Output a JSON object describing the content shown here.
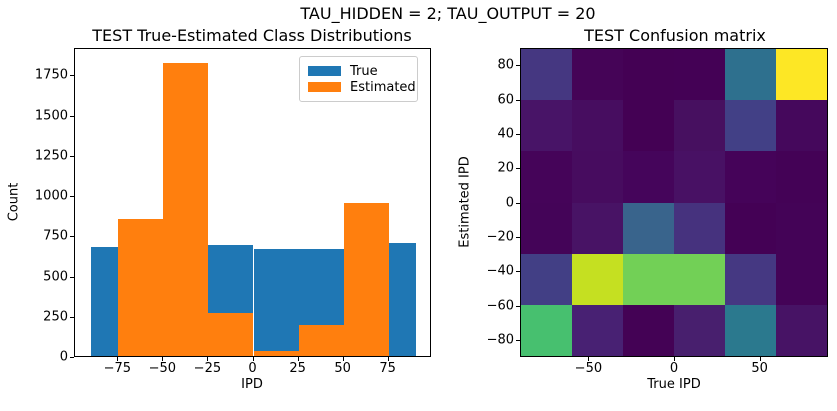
{
  "figure": {
    "suptitle": "TAU_HIDDEN = 2; TAU_OUTPUT = 20",
    "background": "#ffffff"
  },
  "chart_data": [
    {
      "type": "bar",
      "subtype": "overlaid-histogram",
      "title": "TEST True-Estimated Class Distributions",
      "xlabel": "IPD",
      "ylabel": "Count",
      "xlim": [
        -99,
        99
      ],
      "ylim": [
        0,
        1920
      ],
      "xticks": [
        -75,
        -50,
        -25,
        0,
        25,
        50,
        75
      ],
      "yticks": [
        0,
        250,
        500,
        750,
        1000,
        1250,
        1500,
        1750
      ],
      "bin_edges": [
        -90,
        -75,
        -50,
        -25,
        0,
        25,
        50,
        75,
        90
      ],
      "series": [
        {
          "name": "True",
          "color": "#1f77b4",
          "values": [
            680,
            660,
            660,
            690,
            665,
            665,
            665,
            700
          ]
        },
        {
          "name": "Estimated",
          "color": "#ff7f0e",
          "values": [
            0,
            850,
            1820,
            270,
            30,
            190,
            950,
            0
          ]
        }
      ],
      "legend": {
        "position": "upper right",
        "entries": [
          "True",
          "Estimated"
        ]
      },
      "grid": false
    },
    {
      "type": "heatmap",
      "title": "TEST Confusion matrix",
      "xlabel": "True IPD",
      "ylabel": "Estimated IPD",
      "colormap": "viridis",
      "extent": [
        -90,
        90,
        -90,
        90
      ],
      "xticks": [
        -50,
        0,
        50
      ],
      "yticks": [
        80,
        60,
        40,
        20,
        0,
        -20,
        -40,
        -60,
        -80
      ],
      "col_centers_true_ipd": [
        -75,
        -45,
        -15,
        15,
        45,
        75
      ],
      "row_centers_estimated_ipd_top_to_bottom": [
        75,
        45,
        15,
        -15,
        -45,
        -75
      ],
      "values_normalized_top_to_bottom": [
        [
          0.16,
          0.01,
          0.0,
          0.0,
          0.38,
          1.0
        ],
        [
          0.06,
          0.03,
          0.0,
          0.03,
          0.21,
          0.02
        ],
        [
          0.01,
          0.03,
          0.01,
          0.04,
          0.01,
          0.005
        ],
        [
          0.01,
          0.05,
          0.33,
          0.17,
          0.005,
          0.01
        ],
        [
          0.22,
          0.87,
          0.73,
          0.73,
          0.19,
          0.005
        ],
        [
          0.64,
          0.1,
          0.005,
          0.09,
          0.42,
          0.04
        ]
      ],
      "cell_colors_top_to_bottom": [
        [
          "#453781",
          "#450457",
          "#440154",
          "#440155",
          "#2e708e",
          "#fde725"
        ],
        [
          "#481467",
          "#470d60",
          "#440154",
          "#471060",
          "#424086",
          "#45085c"
        ],
        [
          "#450459",
          "#470c5f",
          "#45055b",
          "#481164",
          "#450359",
          "#440256"
        ],
        [
          "#440458",
          "#481365",
          "#39648c",
          "#46327e",
          "#440155",
          "#440357"
        ],
        [
          "#423f85",
          "#c5e021",
          "#72d056",
          "#72d056",
          "#453882",
          "#440357"
        ],
        [
          "#47c06f",
          "#482173",
          "#440255",
          "#481f6e",
          "#2b798e",
          "#471365"
        ]
      ],
      "grid": false
    }
  ]
}
